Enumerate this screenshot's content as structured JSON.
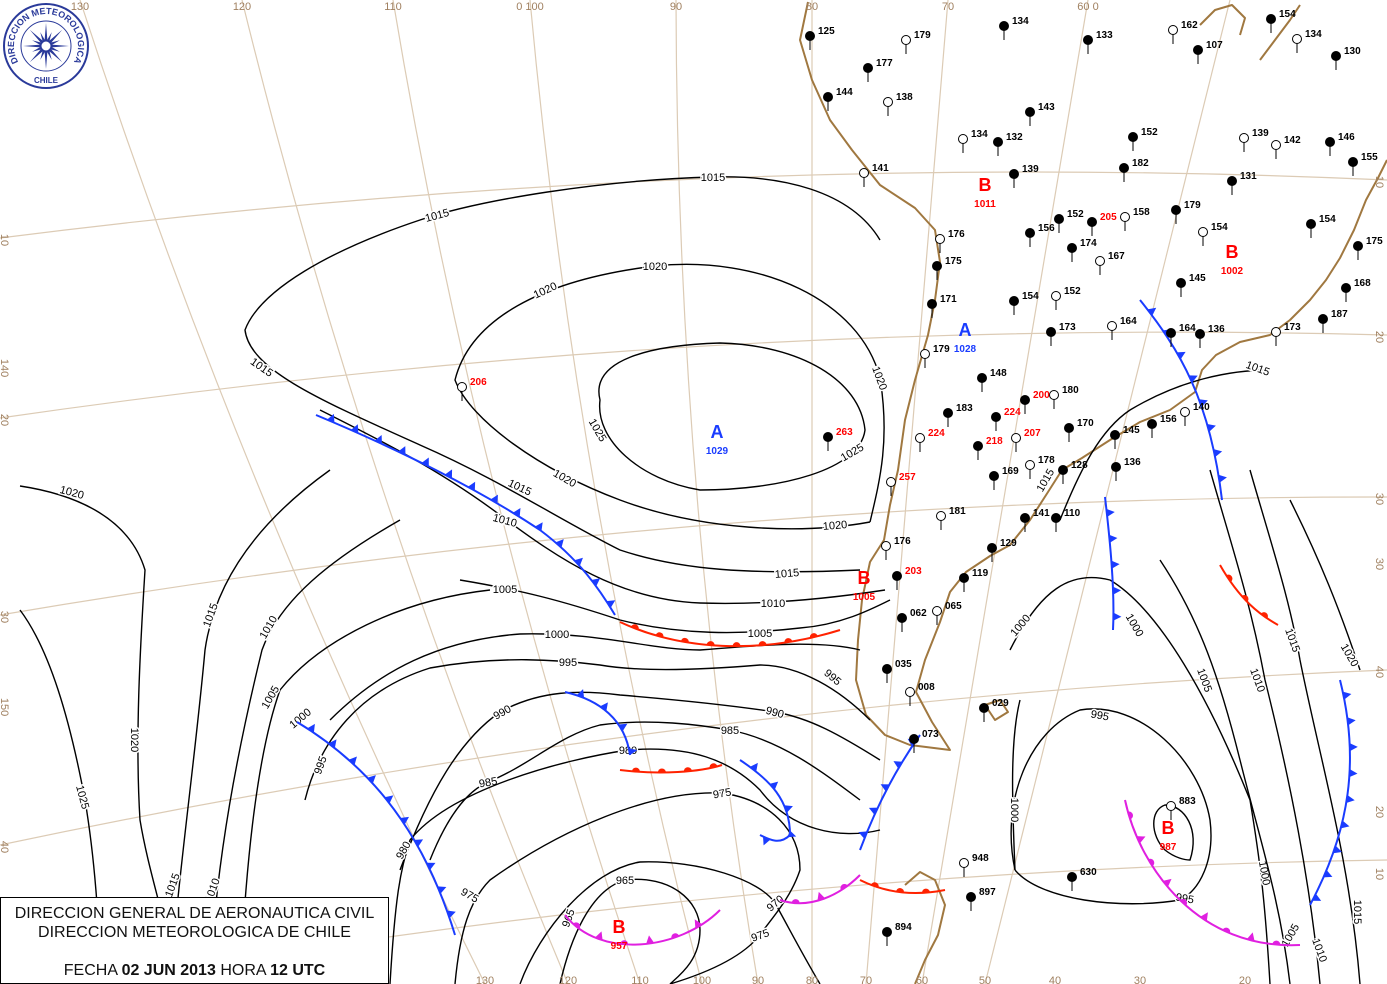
{
  "logo": {
    "text_top": "DIRECCION METEOROLOGICA",
    "text_bottom": "CHILE",
    "color": "#2a3a9a"
  },
  "title_box": {
    "line1": "DIRECCION GENERAL DE AERONAUTICA CIVIL",
    "line2": "DIRECCION METEOROLOGICA DE CHILE",
    "fecha_label": "FECHA",
    "fecha_value": "02 JUN 2013",
    "hora_label": "HORA",
    "hora_value": "12 UTC"
  },
  "grid_labels": {
    "top": [
      "130",
      "120",
      "110",
      "0 100",
      "90",
      "80",
      "70",
      "60 0"
    ],
    "left": [
      "10",
      "140",
      "20",
      "30",
      "150",
      "40"
    ],
    "right": [
      "10",
      "20",
      "30",
      "30",
      "40",
      "20",
      "10"
    ],
    "bottom": [
      "130",
      "120",
      "110",
      "100",
      "90",
      "80",
      "70",
      "60",
      "50",
      "40",
      "30",
      "20"
    ]
  },
  "pressure_centers": [
    {
      "type": "A",
      "value": "1029",
      "color": "#1a3cff"
    },
    {
      "type": "A",
      "value": "1028",
      "color": "#1a3cff"
    },
    {
      "type": "B",
      "value": "957",
      "color": "#ff0000"
    },
    {
      "type": "B",
      "value": "987",
      "color": "#ff0000"
    },
    {
      "type": "B",
      "value": "1002",
      "color": "#ff0000"
    },
    {
      "type": "B",
      "value": "1005",
      "color": "#ff0000"
    },
    {
      "type": "B",
      "value": "1011",
      "color": "#ff0000"
    }
  ],
  "isobars": [
    "1015",
    "1020",
    "1025",
    "1010",
    "1005",
    "1000",
    "995",
    "990",
    "985",
    "980",
    "975",
    "970",
    "965",
    "1020",
    "1015",
    "1025",
    "1010",
    "1005",
    "1000",
    "995",
    "995",
    "1000",
    "1005",
    "1010",
    "1015",
    "1020",
    "1015"
  ],
  "fronts": [
    {
      "type": "cold",
      "color": "#1a3cff"
    },
    {
      "type": "warm",
      "color": "#ff2200"
    },
    {
      "type": "cold",
      "color": "#1a3cff"
    },
    {
      "type": "cold",
      "color": "#1a3cff"
    },
    {
      "type": "warm",
      "color": "#ff2200"
    },
    {
      "type": "cold",
      "color": "#1a3cff"
    },
    {
      "type": "cold",
      "color": "#1a3cff"
    },
    {
      "type": "cold",
      "color": "#1a3cff"
    },
    {
      "type": "warm",
      "color": "#ff2200"
    },
    {
      "type": "cold",
      "color": "#1a3cff"
    },
    {
      "type": "occluded",
      "color": "#e020e0"
    },
    {
      "type": "occluded",
      "color": "#e020e0"
    },
    {
      "type": "occluded",
      "color": "#e020e0"
    },
    {
      "type": "cold",
      "color": "#1a3cff"
    },
    {
      "type": "warm",
      "color": "#ff2200"
    }
  ],
  "stations": [
    {
      "p": "179"
    },
    {
      "p": "177"
    },
    {
      "p": "144"
    },
    {
      "p": "138"
    },
    {
      "p": "134"
    },
    {
      "p": "133"
    },
    {
      "p": "162"
    },
    {
      "p": "107"
    },
    {
      "p": "154"
    },
    {
      "p": "134"
    },
    {
      "p": "130"
    },
    {
      "p": "143"
    },
    {
      "p": "134"
    },
    {
      "p": "132"
    },
    {
      "p": "139"
    },
    {
      "p": "141"
    },
    {
      "p": "152"
    },
    {
      "p": "182"
    },
    {
      "p": "142"
    },
    {
      "p": "146"
    },
    {
      "p": "155"
    },
    {
      "p": "139"
    },
    {
      "p": "131"
    },
    {
      "p": "179"
    },
    {
      "p": "158"
    },
    {
      "p": "152"
    },
    {
      "p": "156"
    },
    {
      "p": "154"
    },
    {
      "p": "154"
    },
    {
      "p": "175"
    },
    {
      "p": "176"
    },
    {
      "p": "175"
    },
    {
      "p": "171"
    },
    {
      "p": "167"
    },
    {
      "p": "174"
    },
    {
      "p": "145"
    },
    {
      "p": "152"
    },
    {
      "p": "154"
    },
    {
      "p": "173"
    },
    {
      "p": "164"
    },
    {
      "p": "164"
    },
    {
      "p": "136"
    },
    {
      "p": "173"
    },
    {
      "p": "168"
    },
    {
      "p": "187"
    },
    {
      "p": "179"
    },
    {
      "p": "148"
    },
    {
      "p": "183"
    },
    {
      "p": "180"
    },
    {
      "p": "170"
    },
    {
      "p": "145"
    },
    {
      "p": "140"
    },
    {
      "p": "156"
    },
    {
      "p": "136"
    },
    {
      "p": "178"
    },
    {
      "p": "128"
    },
    {
      "p": "169"
    },
    {
      "p": "181"
    },
    {
      "p": "141"
    },
    {
      "p": "110"
    },
    {
      "p": "176"
    },
    {
      "p": "129"
    },
    {
      "p": "119"
    },
    {
      "p": "065"
    },
    {
      "p": "062"
    },
    {
      "p": "035"
    },
    {
      "p": "008"
    },
    {
      "p": "029"
    },
    {
      "p": "073"
    },
    {
      "p": "948"
    },
    {
      "p": "897"
    },
    {
      "p": "630"
    },
    {
      "p": "883"
    },
    {
      "p": "894"
    },
    {
      "p": "125"
    },
    {
      "p": "206",
      "red": true
    },
    {
      "p": "263",
      "red": true
    },
    {
      "p": "224",
      "red": true
    },
    {
      "p": "207",
      "red": true
    },
    {
      "p": "200",
      "red": true
    },
    {
      "p": "218",
      "red": true
    },
    {
      "p": "257",
      "red": true
    },
    {
      "p": "203",
      "red": true
    },
    {
      "p": "205",
      "red": true
    },
    {
      "p": "224",
      "red": true
    }
  ],
  "colors": {
    "coastline": "#a07840",
    "grid": "#dccbb5",
    "isobar": "#000000"
  }
}
